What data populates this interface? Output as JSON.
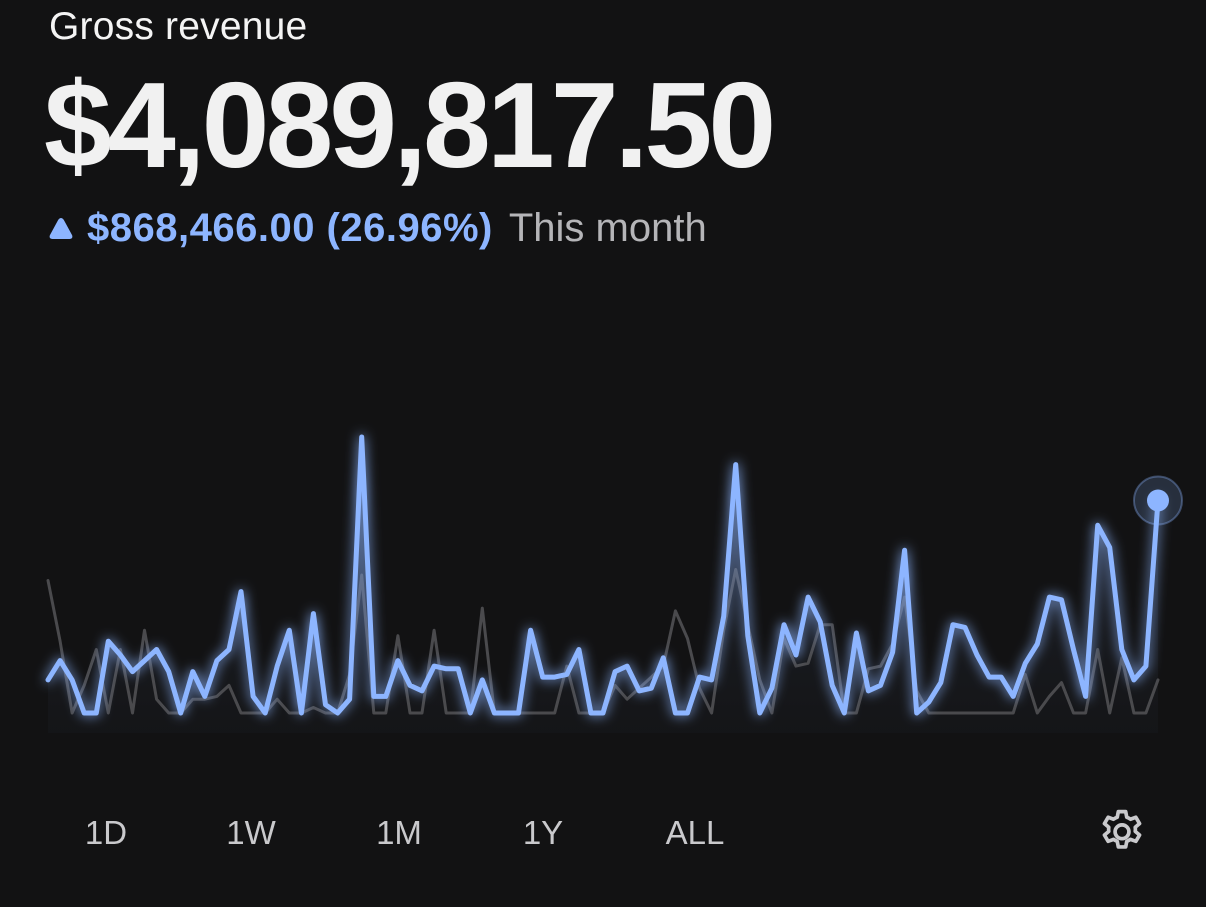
{
  "header": {
    "title": "Gross revenue",
    "amount": "$4,089,817.50",
    "change": "$868,466.00 (26.96%)",
    "period": "This month",
    "change_direction": "up",
    "change_icon": "triangle-up-icon"
  },
  "colors": {
    "background": "#121213",
    "accent": "#8db5ff",
    "comparison_line": "#4a4a4d",
    "text_primary": "#f2f2f2",
    "text_secondary": "#b5b5b8"
  },
  "ranges": [
    "1D",
    "1W",
    "1M",
    "1Y",
    "ALL"
  ],
  "settings_icon": "gear-icon",
  "chart_data": {
    "type": "line",
    "grid": false,
    "axes_visible": false,
    "ylim": [
      0,
      100
    ],
    "series": [
      {
        "role": "current",
        "color": "#8db5ff",
        "values": [
          12,
          19,
          12,
          0,
          0,
          26,
          21,
          15,
          19,
          23,
          15,
          0,
          15,
          6,
          19,
          23,
          44,
          6,
          0,
          17,
          30,
          0,
          36,
          3,
          0,
          5,
          100,
          6,
          6,
          19,
          10,
          8,
          17,
          16,
          16,
          0,
          12,
          0,
          0,
          0,
          30,
          13,
          13,
          14,
          23,
          0,
          0,
          15,
          17,
          8,
          9,
          20,
          0,
          0,
          13,
          12,
          35,
          90,
          28,
          0,
          9,
          32,
          21,
          42,
          33,
          10,
          0,
          29,
          8,
          10,
          22,
          59,
          0,
          4,
          11,
          32,
          31,
          21,
          13,
          13,
          6,
          18,
          25,
          42,
          41,
          23,
          6,
          68,
          60,
          23,
          12,
          17,
          77
        ]
      },
      {
        "role": "comparison",
        "color": "#4a4a4d",
        "values": [
          48,
          26,
          0,
          10,
          23,
          0,
          23,
          0,
          30,
          5,
          0,
          0,
          5,
          5,
          6,
          10,
          0,
          0,
          0,
          5,
          0,
          0,
          2,
          0,
          0,
          14,
          50,
          0,
          0,
          28,
          0,
          0,
          30,
          0,
          0,
          0,
          38,
          0,
          0,
          0,
          0,
          0,
          0,
          17,
          0,
          0,
          0,
          10,
          5,
          9,
          13,
          17,
          37,
          27,
          9,
          0,
          30,
          52,
          32,
          12,
          0,
          27,
          17,
          18,
          32,
          32,
          0,
          0,
          16,
          17,
          25,
          42,
          8,
          0,
          0,
          0,
          0,
          0,
          0,
          0,
          0,
          14,
          0,
          6,
          11,
          0,
          0,
          23,
          0,
          20,
          0,
          0,
          12
        ]
      }
    ],
    "end_marker": true
  }
}
